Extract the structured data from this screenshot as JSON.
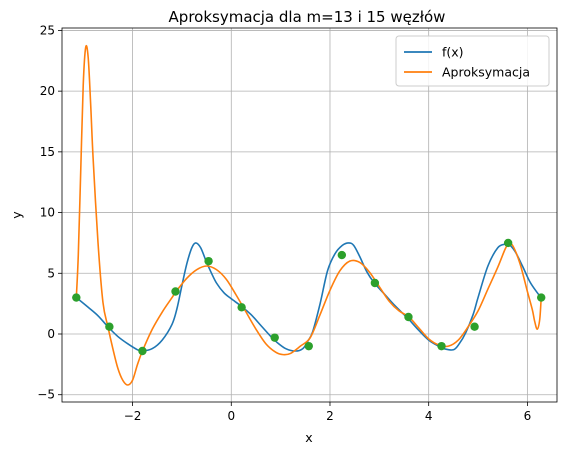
{
  "chart_data": {
    "type": "line",
    "title": "Aproksymacja dla m=13 i 15 węzłów",
    "xlabel": "x",
    "ylabel": "y",
    "xlim": [
      -3.43,
      6.6
    ],
    "ylim": [
      -5.6,
      25.2
    ],
    "xticks": [
      -2,
      0,
      2,
      4,
      6
    ],
    "xtick_labels": [
      "−2",
      "0",
      "2",
      "4",
      "6"
    ],
    "yticks": [
      -5,
      0,
      5,
      10,
      15,
      20,
      25
    ],
    "ytick_labels": [
      "−5",
      "0",
      "5",
      "10",
      "15",
      "20",
      "25"
    ],
    "grid": true,
    "legend_position": "top-right",
    "series": [
      {
        "name": "f(x)",
        "color": "#1f77b4",
        "x": [
          -3.14,
          -2.9,
          -2.7,
          -2.5,
          -2.3,
          -2.1,
          -1.9,
          -1.8,
          -1.6,
          -1.4,
          -1.2,
          -1.1,
          -1.0,
          -0.9,
          -0.8,
          -0.72,
          -0.62,
          -0.5,
          -0.4,
          -0.3,
          -0.15,
          0.0,
          0.2,
          0.4,
          0.6,
          0.8,
          0.9,
          1.1,
          1.3,
          1.45,
          1.55,
          1.65,
          1.8,
          1.95,
          2.1,
          2.25,
          2.38,
          2.48,
          2.6,
          2.75,
          2.9,
          3.1,
          3.3,
          3.5,
          3.6,
          3.8,
          4.0,
          4.2,
          4.3,
          4.5,
          4.62,
          4.75,
          4.9,
          5.0,
          5.2,
          5.4,
          5.55,
          5.62,
          5.75,
          5.9,
          6.05,
          6.2,
          6.28
        ],
        "values": [
          3.0,
          2.2,
          1.5,
          0.6,
          -0.2,
          -0.8,
          -1.3,
          -1.4,
          -1.2,
          -0.5,
          0.8,
          2.1,
          4.0,
          5.8,
          7.1,
          7.5,
          7.1,
          5.9,
          5.0,
          4.2,
          3.4,
          2.9,
          2.3,
          1.6,
          0.7,
          -0.2,
          -0.6,
          -1.2,
          -1.4,
          -1.2,
          -0.6,
          0.2,
          2.5,
          5.2,
          6.6,
          7.3,
          7.5,
          7.3,
          6.4,
          5.1,
          4.2,
          3.3,
          2.4,
          1.6,
          1.2,
          0.3,
          -0.5,
          -1.0,
          -1.2,
          -1.3,
          -0.8,
          0.1,
          1.6,
          3.0,
          5.6,
          7.1,
          7.4,
          7.4,
          6.8,
          5.6,
          4.3,
          3.4,
          3.0
        ]
      },
      {
        "name": "Aproksymacja",
        "color": "#ff7f0e",
        "x": [
          -3.14,
          -3.1,
          -3.05,
          -3.0,
          -2.95,
          -2.9,
          -2.85,
          -2.8,
          -2.7,
          -2.6,
          -2.5,
          -2.4,
          -2.3,
          -2.2,
          -2.1,
          -2.0,
          -1.9,
          -1.8,
          -1.6,
          -1.4,
          -1.2,
          -1.1,
          -0.9,
          -0.7,
          -0.5,
          -0.3,
          -0.1,
          0.1,
          0.3,
          0.5,
          0.7,
          0.9,
          1.05,
          1.2,
          1.4,
          1.6,
          1.8,
          2.0,
          2.2,
          2.4,
          2.6,
          2.8,
          3.0,
          3.2,
          3.4,
          3.6,
          3.8,
          4.0,
          4.2,
          4.4,
          4.6,
          4.8,
          5.0,
          5.2,
          5.4,
          5.55,
          5.62,
          5.7,
          5.85,
          6.0,
          6.1,
          6.15,
          6.2,
          6.25,
          6.28
        ],
        "values": [
          3.0,
          6.5,
          13.5,
          20.5,
          23.6,
          22.8,
          19.0,
          14.5,
          7.5,
          2.6,
          0.6,
          -1.2,
          -2.8,
          -3.8,
          -4.2,
          -3.8,
          -2.5,
          -1.4,
          0.4,
          1.8,
          3.0,
          3.6,
          4.6,
          5.3,
          5.6,
          5.3,
          4.5,
          3.2,
          1.8,
          0.4,
          -0.8,
          -1.5,
          -1.7,
          -1.6,
          -1.0,
          -0.3,
          1.6,
          3.6,
          5.2,
          6.0,
          5.9,
          5.1,
          3.9,
          2.7,
          1.9,
          1.4,
          0.5,
          -0.4,
          -0.9,
          -1.0,
          -0.5,
          0.6,
          1.9,
          3.7,
          5.5,
          7.0,
          7.4,
          7.3,
          5.8,
          3.5,
          2.0,
          1.0,
          0.4,
          1.2,
          3.0
        ]
      }
    ],
    "nodes": {
      "color": "#2ca02c",
      "x": [
        -3.14,
        -2.47,
        -1.8,
        -1.13,
        -0.46,
        0.21,
        0.88,
        1.57,
        2.24,
        2.91,
        3.59,
        4.26,
        4.93,
        5.61,
        6.28
      ],
      "values": [
        3.0,
        0.6,
        -1.4,
        3.5,
        6.0,
        2.2,
        -0.3,
        -1.0,
        6.5,
        4.2,
        1.4,
        -1.0,
        0.6,
        7.5,
        3.0
      ]
    }
  }
}
